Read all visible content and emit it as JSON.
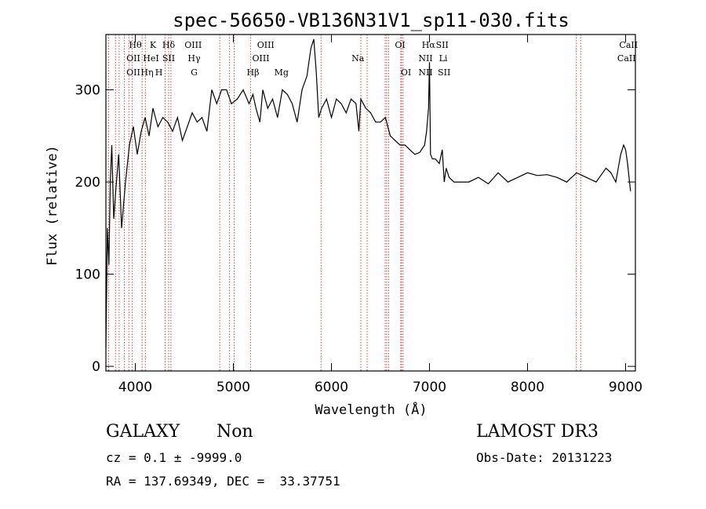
{
  "chart_data": {
    "type": "line",
    "title": "spec-56650-VB136N31V1_sp11-030.fits",
    "xlabel": "Wavelength (Å)",
    "ylabel": "Flux (relative)",
    "xlim": [
      3700,
      9100
    ],
    "ylim": [
      -5,
      360
    ],
    "x_ticks": [
      4000,
      5000,
      6000,
      7000,
      8000,
      9000
    ],
    "y_ticks": [
      0,
      100,
      200,
      300
    ],
    "grid": false,
    "line_color": "#000000",
    "marker_color": "#cc3333",
    "series": [
      {
        "name": "flux",
        "x": [
          3700,
          3715,
          3730,
          3745,
          3760,
          3780,
          3800,
          3830,
          3860,
          3900,
          3940,
          3980,
          4020,
          4060,
          4100,
          4140,
          4180,
          4230,
          4280,
          4330,
          4380,
          4430,
          4480,
          4530,
          4580,
          4630,
          4680,
          4730,
          4780,
          4830,
          4880,
          4930,
          4980,
          5040,
          5100,
          5160,
          5200,
          5230,
          5270,
          5300,
          5350,
          5400,
          5450,
          5500,
          5550,
          5600,
          5650,
          5700,
          5750,
          5790,
          5820,
          5845,
          5870,
          5900,
          5950,
          6000,
          6050,
          6100,
          6150,
          6200,
          6250,
          6280,
          6300,
          6350,
          6400,
          6450,
          6500,
          6550,
          6600,
          6650,
          6700,
          6750,
          6800,
          6850,
          6900,
          6950,
          6970,
          6990,
          7000,
          7010,
          7030,
          7060,
          7100,
          7130,
          7150,
          7170,
          7200,
          7250,
          7300,
          7400,
          7500,
          7600,
          7700,
          7800,
          7900,
          8000,
          8100,
          8200,
          8300,
          8400,
          8500,
          8600,
          8700,
          8800,
          8850,
          8900,
          8950,
          8980,
          9000,
          9020,
          9050
        ],
        "values": [
          20,
          150,
          110,
          200,
          240,
          160,
          190,
          230,
          150,
          200,
          240,
          260,
          230,
          255,
          270,
          250,
          280,
          260,
          270,
          265,
          255,
          270,
          245,
          260,
          275,
          265,
          270,
          255,
          300,
          285,
          300,
          300,
          285,
          290,
          300,
          285,
          295,
          280,
          265,
          300,
          280,
          290,
          270,
          300,
          295,
          285,
          265,
          300,
          315,
          345,
          355,
          320,
          270,
          280,
          290,
          270,
          290,
          285,
          275,
          290,
          285,
          255,
          290,
          280,
          275,
          265,
          265,
          270,
          250,
          245,
          240,
          240,
          235,
          230,
          232,
          240,
          255,
          280,
          330,
          230,
          225,
          225,
          220,
          235,
          200,
          215,
          205,
          200,
          200,
          200,
          205,
          198,
          210,
          200,
          205,
          210,
          207,
          208,
          205,
          200,
          210,
          205,
          200,
          215,
          210,
          200,
          230,
          240,
          235,
          220,
          190
        ]
      }
    ],
    "lines": [
      {
        "name": "OII",
        "wavelength": 3727
      },
      {
        "name": "Hθ",
        "wavelength": 3798
      },
      {
        "name": "Hη",
        "wavelength": 3835
      },
      {
        "name": "HeI",
        "wavelength": 3889
      },
      {
        "name": "K",
        "wavelength": 3934
      },
      {
        "name": "H",
        "wavelength": 3969
      },
      {
        "name": "Hδ",
        "wavelength": 4102
      },
      {
        "name": "SII",
        "wavelength": 4069
      },
      {
        "name": "G",
        "wavelength": 4304
      },
      {
        "name": "Hγ",
        "wavelength": 4340
      },
      {
        "name": "OIII",
        "wavelength": 4363
      },
      {
        "name": "Hβ",
        "wavelength": 4861
      },
      {
        "name": "OIII",
        "wavelength": 4959
      },
      {
        "name": "OIII",
        "wavelength": 5007
      },
      {
        "name": "Mg",
        "wavelength": 5175
      },
      {
        "name": "Na",
        "wavelength": 5894
      },
      {
        "name": "OI",
        "wavelength": 6300
      },
      {
        "name": "OI",
        "wavelength": 6364
      },
      {
        "name": "NII",
        "wavelength": 6548
      },
      {
        "name": "Hα",
        "wavelength": 6563
      },
      {
        "name": "NII",
        "wavelength": 6583
      },
      {
        "name": "Li",
        "wavelength": 6707
      },
      {
        "name": "SII",
        "wavelength": 6716
      },
      {
        "name": "SII",
        "wavelength": 6731
      },
      {
        "name": "CaII",
        "wavelength": 8498
      },
      {
        "name": "CaII",
        "wavelength": 8542
      }
    ],
    "line_labels": [
      {
        "text": "Hθ",
        "x": 4000,
        "row": 1
      },
      {
        "text": "K",
        "x": 4180,
        "row": 1
      },
      {
        "text": "Hδ",
        "x": 4340,
        "row": 1
      },
      {
        "text": "OIII",
        "x": 4590,
        "row": 1
      },
      {
        "text": "OIII",
        "x": 5330,
        "row": 1
      },
      {
        "text": "OI",
        "x": 6700,
        "row": 1
      },
      {
        "text": "Hα",
        "x": 6990,
        "row": 1
      },
      {
        "text": "SII",
        "x": 7130,
        "row": 1
      },
      {
        "text": "CaII",
        "x": 9030,
        "row": 1
      },
      {
        "text": "OII",
        "x": 3980,
        "row": 2
      },
      {
        "text": "HeI",
        "x": 4160,
        "row": 2
      },
      {
        "text": "SII",
        "x": 4340,
        "row": 2
      },
      {
        "text": "Hγ",
        "x": 4600,
        "row": 2
      },
      {
        "text": "OIII",
        "x": 5280,
        "row": 2
      },
      {
        "text": "Na",
        "x": 6270,
        "row": 2
      },
      {
        "text": "NII",
        "x": 6960,
        "row": 2
      },
      {
        "text": "Li",
        "x": 7140,
        "row": 2
      },
      {
        "text": "CaII",
        "x": 9010,
        "row": 2
      },
      {
        "text": "OII",
        "x": 3980,
        "row": 3
      },
      {
        "text": "Hη",
        "x": 4120,
        "row": 3
      },
      {
        "text": "H",
        "x": 4240,
        "row": 3
      },
      {
        "text": "G",
        "x": 4600,
        "row": 3
      },
      {
        "text": "Hβ",
        "x": 5200,
        "row": 3
      },
      {
        "text": "Mg",
        "x": 5490,
        "row": 3
      },
      {
        "text": "OI",
        "x": 6760,
        "row": 3
      },
      {
        "text": "NII",
        "x": 6960,
        "row": 3
      },
      {
        "text": "SII",
        "x": 7150,
        "row": 3
      }
    ]
  },
  "info": {
    "class": "GALAXY",
    "subclass": "Non",
    "survey": "LAMOST DR3",
    "cz": "cz = 0.1 ± -9999.0",
    "obs_date": "Obs-Date: 20131223",
    "radec": "RA = 137.69349, DEC =  33.37751"
  }
}
